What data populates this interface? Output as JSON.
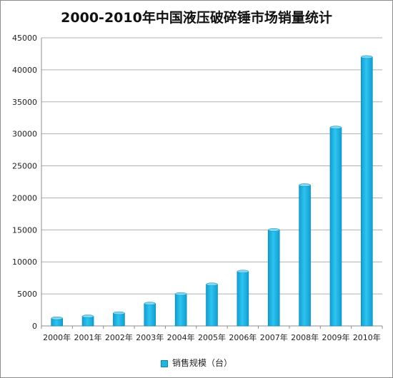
{
  "chart_data": {
    "type": "bar",
    "title": "2000-2010年中国液压破碎锤市场销量统计",
    "categories": [
      "2000年",
      "2001年",
      "2002年",
      "2003年",
      "2004年",
      "2005年",
      "2006年",
      "2007年",
      "2008年",
      "2009年",
      "2010年"
    ],
    "series": [
      {
        "name": "销售规模（台）",
        "values": [
          1200,
          1500,
          2000,
          3500,
          5000,
          6500,
          8500,
          15000,
          22000,
          31000,
          42000
        ]
      }
    ],
    "y_ticks": [
      "0",
      "5000",
      "10000",
      "15000",
      "20000",
      "25000",
      "30000",
      "35000",
      "40000",
      "45000"
    ],
    "ylim": [
      0,
      45000
    ],
    "grid": true,
    "legend_position": "bottom",
    "colors": {
      "bar": "#1fb6e6",
      "bar_top": "#7ad8f4",
      "bar_edge": "#0a86b4",
      "grid": "#b0b0b0"
    }
  }
}
